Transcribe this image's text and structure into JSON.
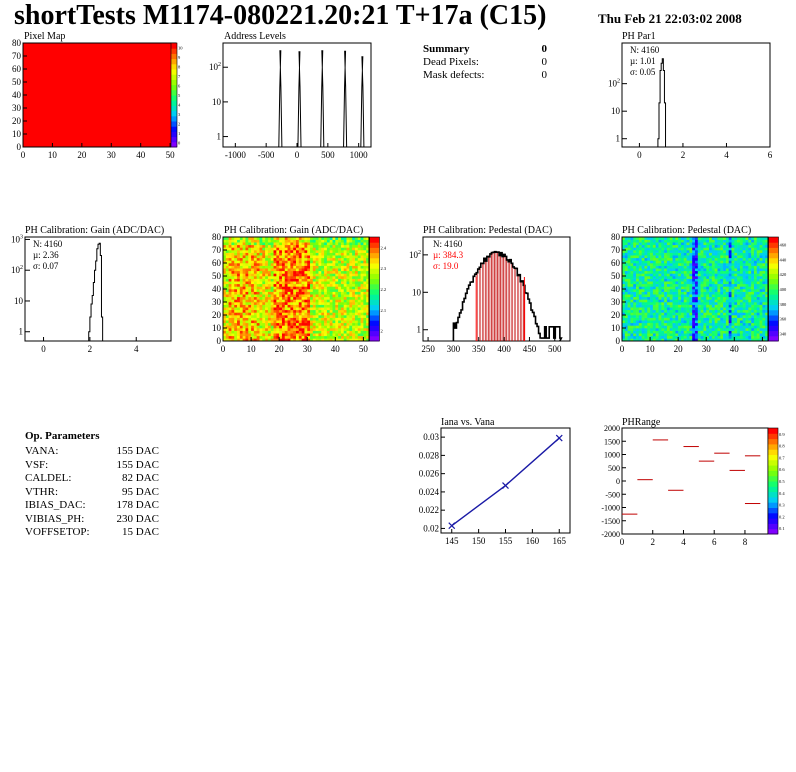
{
  "header": {
    "title": "shortTests M1174-080221.20:21 T+17a (C15)",
    "date": "Thu Feb 21 22:03:02 2008"
  },
  "summary": {
    "title": "Summary",
    "title_value": "0",
    "rows": [
      {
        "label": "Dead Pixels:",
        "value": "0"
      },
      {
        "label": "Mask defects:",
        "value": "0"
      }
    ]
  },
  "op_params": {
    "title": "Op. Parameters",
    "rows": [
      {
        "label": "VANA:",
        "value": "155 DAC"
      },
      {
        "label": "VSF:",
        "value": "155 DAC"
      },
      {
        "label": "CALDEL:",
        "value": "82 DAC"
      },
      {
        "label": "VTHR:",
        "value": "95 DAC"
      },
      {
        "label": "IBIAS_DAC:",
        "value": "178 DAC"
      },
      {
        "label": "VIBIAS_PH:",
        "value": "230 DAC"
      },
      {
        "label": "VOFFSETOP:",
        "value": "15 DAC"
      }
    ]
  },
  "colors": {
    "hist_line": "#000000",
    "stat_red": "#ff0000",
    "line_blue": "#1a1aa6",
    "map_red": "#ff0000"
  },
  "chart_data": [
    {
      "id": "pixel_map",
      "type": "heatmap",
      "title": "Pixel Map",
      "xlim": [
        0,
        52
      ],
      "ylim": [
        0,
        80
      ],
      "xticks": [
        "0",
        "10",
        "20",
        "30",
        "40",
        "50"
      ],
      "yticks": [
        "0",
        "10",
        "20",
        "30",
        "40",
        "50",
        "60",
        "70",
        "80"
      ],
      "zrange": [
        0,
        10
      ],
      "zticks": [
        "0",
        "1",
        "2",
        "3",
        "4",
        "5",
        "6",
        "7",
        "8",
        "9",
        "10"
      ],
      "fill_value": 10
    },
    {
      "id": "address_levels",
      "type": "bar",
      "title": "Address Levels",
      "xlim": [
        -1200,
        1200
      ],
      "log_y": true,
      "ylim": [
        0.5,
        500
      ],
      "xticks": [
        "-1000",
        "-500",
        "0",
        "500",
        "1000"
      ],
      "yticks": [
        "1",
        "10",
        "10^2"
      ],
      "peaks": [
        {
          "x": -270,
          "y": 300
        },
        {
          "x": 40,
          "y": 280
        },
        {
          "x": 410,
          "y": 300
        },
        {
          "x": 780,
          "y": 290
        },
        {
          "x": 1060,
          "y": 200
        }
      ]
    },
    {
      "id": "ph_par1",
      "type": "bar",
      "title": "PH Par1",
      "xlim": [
        -0.8,
        6
      ],
      "log_y": true,
      "ylim": [
        0.5,
        3000
      ],
      "xticks": [
        "0",
        "2",
        "4",
        "6"
      ],
      "yticks": [
        "1",
        "10",
        "10^2"
      ],
      "stats": {
        "n": "N: 4160",
        "mu": "µ: 1.01",
        "sigma": "σ: 0.05"
      },
      "bins": [
        [
          0.85,
          1
        ],
        [
          0.9,
          20
        ],
        [
          0.95,
          300
        ],
        [
          1.0,
          550
        ],
        [
          1.05,
          800
        ],
        [
          1.1,
          300
        ],
        [
          1.15,
          20
        ]
      ]
    },
    {
      "id": "gain_1d",
      "type": "bar",
      "title": "PH Calibration: Gain (ADC/DAC)",
      "xlim": [
        -0.8,
        5.5
      ],
      "log_y": true,
      "ylim": [
        0.5,
        1200
      ],
      "xticks": [
        "0",
        "2",
        "4"
      ],
      "yticks": [
        "1",
        "10",
        "10^2",
        "10^3"
      ],
      "stats": {
        "n": "N: 4160",
        "mu": "µ: 2.36",
        "sigma": "σ: 0.07"
      },
      "bins": [
        [
          1.95,
          1
        ],
        [
          2.0,
          3
        ],
        [
          2.05,
          8
        ],
        [
          2.1,
          15
        ],
        [
          2.15,
          40
        ],
        [
          2.2,
          100
        ],
        [
          2.25,
          200
        ],
        [
          2.3,
          500
        ],
        [
          2.35,
          700
        ],
        [
          2.4,
          750
        ],
        [
          2.45,
          300
        ],
        [
          2.5,
          3
        ]
      ]
    },
    {
      "id": "gain_map",
      "type": "heatmap",
      "title": "PH Calibration: Gain (ADC/DAC)",
      "xlim": [
        0,
        52
      ],
      "ylim": [
        0,
        80
      ],
      "xticks": [
        "0",
        "10",
        "20",
        "30",
        "40",
        "50"
      ],
      "yticks": [
        "0",
        "10",
        "20",
        "30",
        "40",
        "50",
        "60",
        "70",
        "80"
      ],
      "zrange": [
        1.9,
        2.5
      ],
      "zticks": [
        "2",
        "2.1",
        "2.2",
        "2.3",
        "2.4"
      ]
    },
    {
      "id": "pedestal_1d",
      "type": "bar",
      "title": "PH Calibration: Pedestal (DAC)",
      "xlim": [
        240,
        530
      ],
      "log_y": true,
      "ylim": [
        0.5,
        300
      ],
      "xticks": [
        "250",
        "300",
        "350",
        "400",
        "450",
        "500"
      ],
      "yticks": [
        "1",
        "10",
        "10^2"
      ],
      "stats": {
        "n": "N: 4160",
        "mu": "µ: 384.3",
        "sigma": "σ: 19.0"
      },
      "fit_range": [
        345,
        440
      ],
      "mean": 384.3,
      "sigma_value": 19.0,
      "peak": 110
    },
    {
      "id": "pedestal_map",
      "type": "heatmap",
      "title": "PH Calibration: Pedestal (DAC)",
      "xlim": [
        0,
        52
      ],
      "ylim": [
        0,
        80
      ],
      "xticks": [
        "0",
        "10",
        "20",
        "30",
        "40",
        "50"
      ],
      "yticks": [
        "0",
        "10",
        "20",
        "30",
        "40",
        "50",
        "60",
        "70",
        "80"
      ],
      "zrange": [
        330,
        460
      ],
      "zticks": [
        "340",
        "360",
        "380",
        "400",
        "420",
        "440",
        "460"
      ]
    },
    {
      "id": "iana_vana",
      "type": "line",
      "title": "Iana vs. Vana",
      "xlim": [
        143,
        167
      ],
      "ylim": [
        0.0195,
        0.031
      ],
      "xticks": [
        "145",
        "150",
        "155",
        "160",
        "165"
      ],
      "yticks": [
        "0.02",
        "0.022",
        "0.024",
        "0.026",
        "0.028",
        "0.03"
      ],
      "x": [
        145,
        155,
        165
      ],
      "y": [
        0.0203,
        0.0247,
        0.0299
      ]
    },
    {
      "id": "ph_range",
      "type": "scatter",
      "title": "PHRange",
      "xlim": [
        0,
        9.5
      ],
      "ylim": [
        -2000,
        2000
      ],
      "xticks": [
        "0",
        "2",
        "4",
        "6",
        "8"
      ],
      "yticks": [
        "-2000",
        "-1500",
        "-1000",
        "-500",
        "0",
        "500",
        "1000",
        "1500",
        "2000"
      ],
      "zticks": [
        "0.1",
        "0.2",
        "0.3",
        "0.4",
        "0.5",
        "0.6",
        "0.7",
        "0.8",
        "0.9"
      ],
      "segments": [
        {
          "x": 0,
          "y": -1250
        },
        {
          "x": 1,
          "y": 50
        },
        {
          "x": 2,
          "y": 1550
        },
        {
          "x": 3,
          "y": -350
        },
        {
          "x": 4,
          "y": 1300
        },
        {
          "x": 5,
          "y": 750
        },
        {
          "x": 6,
          "y": 1050
        },
        {
          "x": 7,
          "y": 400
        },
        {
          "x": 8,
          "y": 950
        },
        {
          "x": 8,
          "y": -850
        }
      ]
    }
  ]
}
